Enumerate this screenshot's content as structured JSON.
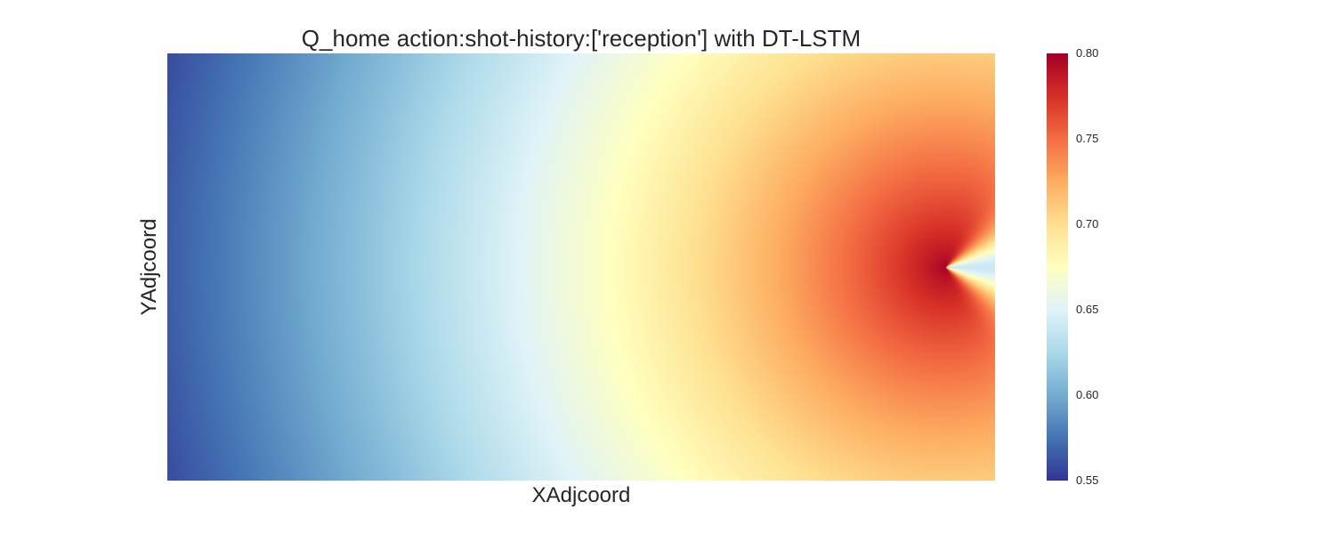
{
  "chart_data": {
    "type": "heatmap",
    "title": "Q_home action:shot-history:['reception'] with DT-LSTM",
    "xlabel": "XAdjcoord",
    "ylabel": "YAdjcoord",
    "colormap": "RdYlBu_r",
    "colorbar": {
      "vmin": 0.55,
      "vmax": 0.8,
      "ticks": [
        "0.80",
        "0.75",
        "0.70",
        "0.65",
        "0.60",
        "0.55"
      ],
      "tick_values": [
        0.8,
        0.75,
        0.7,
        0.65,
        0.6,
        0.55
      ]
    },
    "colorscale": [
      "#313695",
      "#4575b4",
      "#74add1",
      "#abd9e9",
      "#e0f3f8",
      "#ffffbf",
      "#fee090",
      "#fdae61",
      "#f46d43",
      "#d73027",
      "#a50026"
    ],
    "peak": {
      "x_fraction": 0.94,
      "y_fraction": 0.5,
      "value": 0.8
    },
    "value_samples": {
      "left_edge_top": 0.57,
      "left_edge_center": 0.6,
      "center_of_field": 0.67,
      "right_edge_top": 0.69,
      "right_of_peak_center": 0.64
    }
  }
}
